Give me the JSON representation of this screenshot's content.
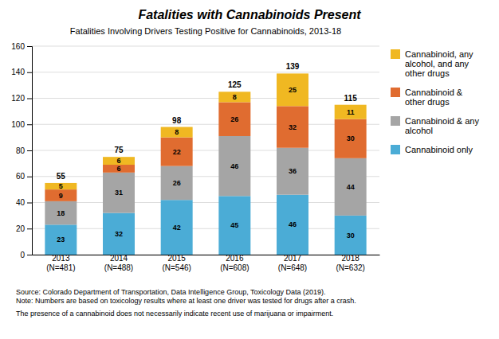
{
  "chart_data": {
    "type": "bar",
    "title": "Fatalities with Cannabinoids Present",
    "subtitle": "Fatalities Involving Drivers Testing Positive for Cannabinoids, 2013-18",
    "categories": [
      "2013\n(N=481)",
      "2014\n(N=488)",
      "2015\n(N=546)",
      "2016\n(N=608)",
      "2017\n(N=648)",
      "2018\n(N=632)"
    ],
    "series": [
      {
        "name": "Cannabinoid only",
        "color": "#4bacd6",
        "values": [
          23,
          32,
          42,
          45,
          46,
          30
        ]
      },
      {
        "name": "Cannabinoid & any\nalcohol",
        "color": "#a5a5a5",
        "values": [
          18,
          31,
          26,
          46,
          36,
          44
        ]
      },
      {
        "name": "Cannabinoid &\nother drugs",
        "color": "#e06c30",
        "values": [
          9,
          6,
          22,
          26,
          32,
          30
        ]
      },
      {
        "name": "Cannabinoid, any\nalcohol, and any\nother drugs",
        "color": "#f0b822",
        "values": [
          5,
          6,
          8,
          8,
          25,
          11
        ]
      }
    ],
    "totals": [
      55,
      75,
      98,
      125,
      139,
      115
    ],
    "ylim": [
      0,
      160
    ],
    "yticks": [
      0,
      20,
      40,
      60,
      80,
      100,
      120,
      140,
      160
    ],
    "stacked": true,
    "data_labels": true,
    "grid": true,
    "legend": "right",
    "annotations": [
      "Source: Colorado Department of Transportation, Data Intelligence Group, Toxicology Data (2019).\nNote: Numbers are based on toxicology results where at least one driver was tested for drugs after a crash.",
      "The presence of a cannabinoid does not necessarily indicate recent use of marijuana or impairment."
    ]
  }
}
